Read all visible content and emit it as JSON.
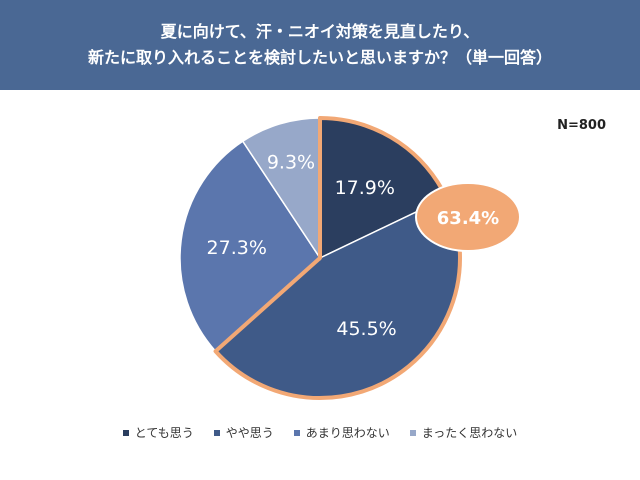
{
  "header": {
    "title_line1": "夏に向けて、汗・ニオイ対策を見直したり、",
    "title_line2": "新たに取り入れることを検討したいと思いますか？（単一回答）"
  },
  "sample_size": "N=800",
  "chart_data": {
    "type": "pie",
    "title": "夏に向けて、汗・ニオイ対策を見直したり、新たに取り入れることを検討したいと思いますか？（単一回答）",
    "categories": [
      "とても思う",
      "やや思う",
      "あまり思わない",
      "まったく思わない"
    ],
    "values": [
      17.9,
      45.5,
      27.3,
      9.3
    ],
    "value_labels": [
      "17.9%",
      "45.5%",
      "27.3%",
      "9.3%"
    ],
    "colors": [
      "#2b3e5f",
      "#3f5a88",
      "#5b76ad",
      "#97a8c9"
    ],
    "callout": {
      "label": "63.4%",
      "color": "#f2a875"
    },
    "legend_position": "bottom"
  }
}
